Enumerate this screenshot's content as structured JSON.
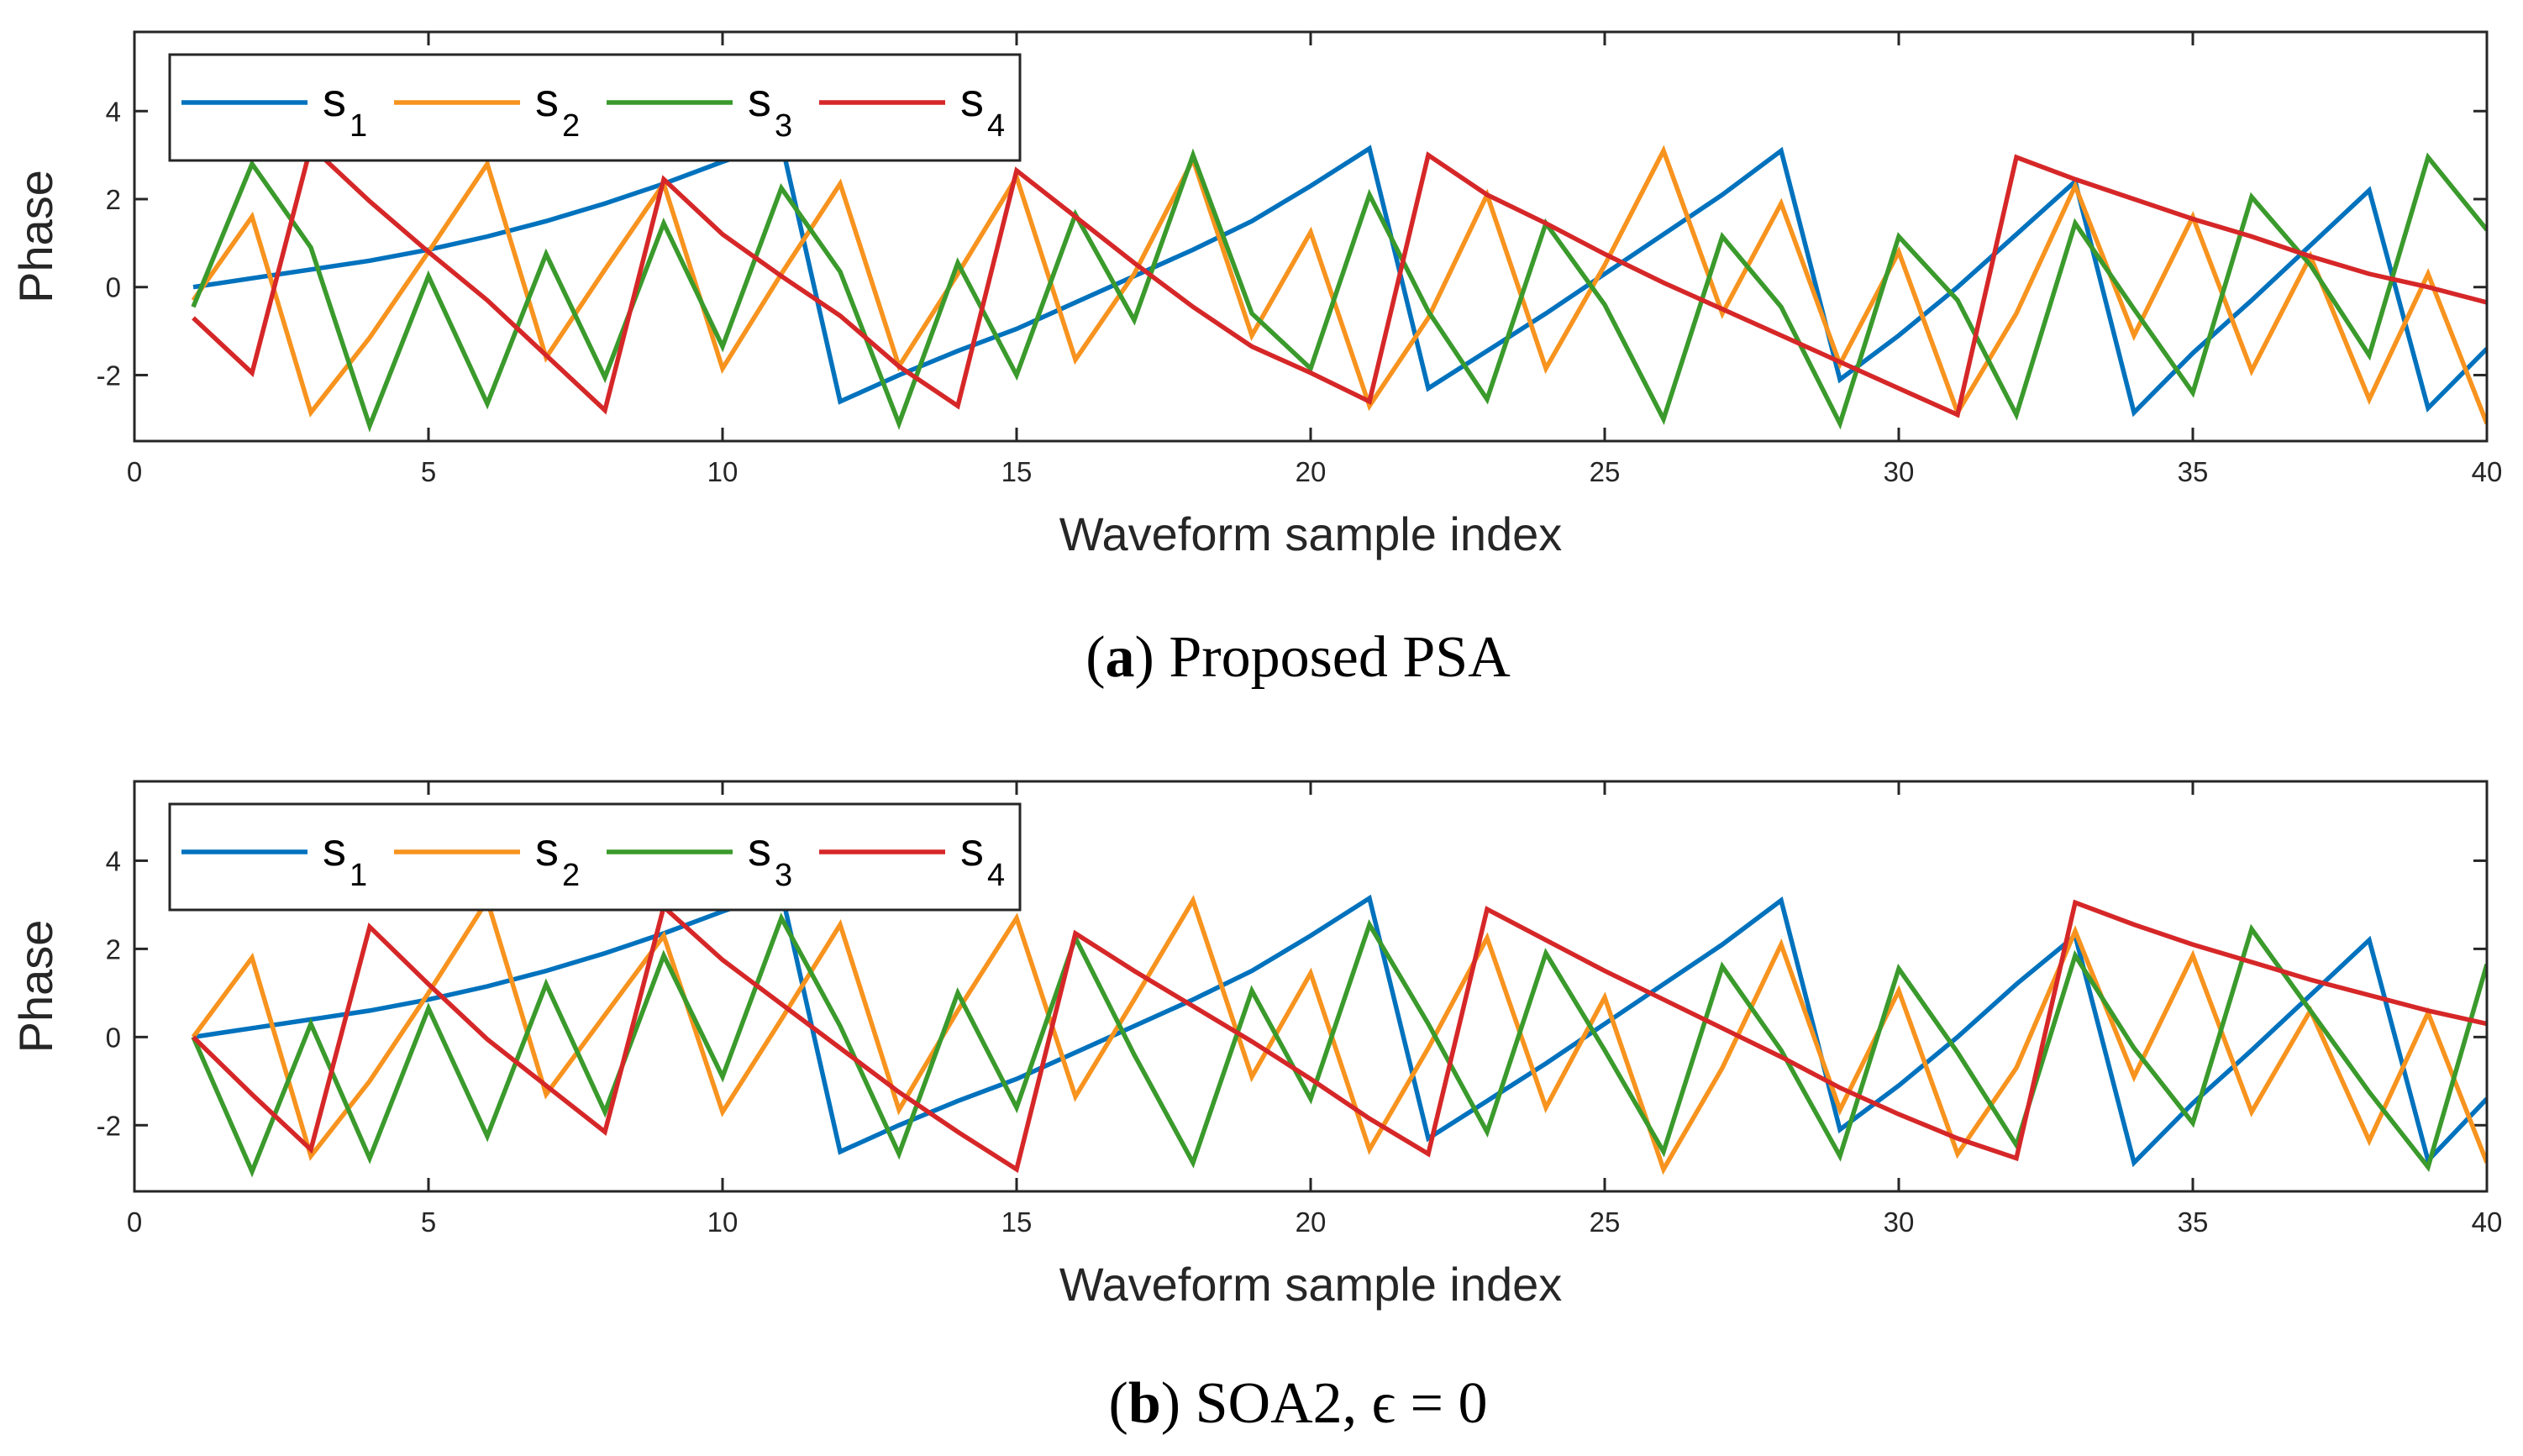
{
  "chart_data": [
    {
      "type": "line",
      "xlabel": "Waveform sample index",
      "ylabel": "Phase",
      "xlim": [
        0,
        40
      ],
      "ylim": [
        -3.5,
        5.8
      ],
      "xticks": [
        0,
        5,
        10,
        15,
        20,
        25,
        30,
        35,
        40
      ],
      "yticks": [
        -2,
        0,
        2,
        4
      ],
      "grid": false,
      "legend": "top-left",
      "caption": {
        "label": "a",
        "text": "Proposed PSA"
      },
      "x": [
        1,
        2,
        3,
        4,
        5,
        6,
        7,
        8,
        9,
        10,
        11,
        12,
        13,
        14,
        15,
        16,
        17,
        18,
        19,
        20,
        21,
        22,
        23,
        24,
        25,
        26,
        27,
        28,
        29,
        30,
        31,
        32,
        33,
        34,
        35,
        36,
        37,
        38,
        39,
        40
      ],
      "series": [
        {
          "name": "s1",
          "sub": "1",
          "color": "#0072BD",
          "values": [
            0.0,
            0.2,
            0.4,
            0.6,
            0.85,
            1.15,
            1.5,
            1.9,
            2.35,
            2.85,
            3.3,
            -2.6,
            -2.0,
            -1.45,
            -0.95,
            -0.35,
            0.25,
            0.85,
            1.5,
            2.3,
            3.15,
            -2.3,
            -1.45,
            -0.6,
            0.3,
            1.2,
            2.1,
            3.1,
            -2.1,
            -1.1,
            0.0,
            1.2,
            2.4,
            -2.85,
            -1.5,
            -0.3,
            0.95,
            2.2,
            -2.75,
            -1.4
          ]
        },
        {
          "name": "s2",
          "sub": "2",
          "color": "#EDB120",
          "values": [
            -0.3,
            1.6,
            -2.85,
            -1.15,
            0.8,
            2.8,
            -1.6,
            0.4,
            2.35,
            -1.85,
            0.3,
            2.35,
            -1.8,
            0.3,
            2.5,
            -1.65,
            0.3,
            2.9,
            -1.1,
            1.25,
            -2.7,
            -0.7,
            2.1,
            -1.85,
            0.5,
            3.1,
            -0.6,
            1.9,
            -1.75,
            0.8,
            -2.85,
            -0.6,
            2.3,
            -1.1,
            1.6,
            -1.9,
            0.7,
            -2.55,
            0.3,
            -3.1
          ]
        },
        {
          "name": "s3",
          "sub": "3",
          "color": "#77AC30",
          "values": [
            -0.45,
            2.8,
            0.9,
            -3.15,
            0.25,
            -2.65,
            0.75,
            -2.05,
            1.45,
            -1.35,
            2.25,
            0.35,
            -3.1,
            0.55,
            -2.0,
            1.65,
            -0.75,
            3.0,
            -0.6,
            -1.85,
            2.1,
            -0.55,
            -2.55,
            1.45,
            -0.4,
            -3.0,
            1.15,
            -0.45,
            -3.1,
            1.15,
            -0.3,
            -2.9,
            1.45,
            -0.5,
            -2.4,
            2.05,
            0.5,
            -1.55,
            2.95,
            1.3
          ]
        },
        {
          "name": "s4",
          "sub": "4",
          "color": "#D95319",
          "values": [
            -0.7,
            -1.95,
            3.2,
            1.95,
            0.8,
            -0.3,
            -1.55,
            -2.8,
            2.45,
            1.2,
            0.25,
            -0.65,
            -1.8,
            -2.7,
            2.65,
            1.6,
            0.55,
            -0.45,
            -1.35,
            -1.95,
            -2.6,
            3.0,
            2.1,
            1.45,
            0.75,
            0.1,
            -0.5,
            -1.1,
            -1.7,
            -2.3,
            -2.9,
            2.95,
            2.45,
            2.0,
            1.55,
            1.15,
            0.7,
            0.3,
            0.0,
            -0.35
          ]
        }
      ]
    },
    {
      "type": "line",
      "xlabel": "Waveform sample index",
      "ylabel": "Phase",
      "xlim": [
        0,
        40
      ],
      "ylim": [
        -3.5,
        5.8
      ],
      "xticks": [
        0,
        5,
        10,
        15,
        20,
        25,
        30,
        35,
        40
      ],
      "yticks": [
        -2,
        0,
        2,
        4
      ],
      "grid": false,
      "legend": "top-left",
      "caption": {
        "label": "b",
        "text": "SOA2, ϵ = 0"
      },
      "x": [
        1,
        2,
        3,
        4,
        5,
        6,
        7,
        8,
        9,
        10,
        11,
        12,
        13,
        14,
        15,
        16,
        17,
        18,
        19,
        20,
        21,
        22,
        23,
        24,
        25,
        26,
        27,
        28,
        29,
        30,
        31,
        32,
        33,
        34,
        35,
        36,
        37,
        38,
        39,
        40
      ],
      "series": [
        {
          "name": "s1",
          "sub": "1",
          "color": "#0072BD",
          "values": [
            0.0,
            0.2,
            0.4,
            0.6,
            0.85,
            1.15,
            1.5,
            1.9,
            2.35,
            2.85,
            3.3,
            -2.6,
            -2.0,
            -1.45,
            -0.95,
            -0.35,
            0.25,
            0.85,
            1.5,
            2.3,
            3.15,
            -2.3,
            -1.45,
            -0.6,
            0.3,
            1.2,
            2.1,
            3.1,
            -2.1,
            -1.1,
            0.0,
            1.2,
            2.3,
            -2.85,
            -1.5,
            -0.3,
            0.95,
            2.2,
            -2.8,
            -1.4
          ]
        },
        {
          "name": "s2",
          "sub": "2",
          "color": "#EDB120",
          "values": [
            0.0,
            1.8,
            -2.7,
            -1.0,
            1.0,
            3.1,
            -1.3,
            0.5,
            2.3,
            -1.7,
            0.4,
            2.55,
            -1.65,
            0.6,
            2.7,
            -1.35,
            0.85,
            3.1,
            -0.9,
            1.45,
            -2.55,
            -0.25,
            2.25,
            -1.6,
            0.9,
            -3.0,
            -0.7,
            2.1,
            -1.65,
            1.05,
            -2.65,
            -0.7,
            2.4,
            -0.9,
            1.85,
            -1.7,
            0.6,
            -2.35,
            0.55,
            -2.85
          ]
        },
        {
          "name": "s3",
          "sub": "3",
          "color": "#77AC30",
          "values": [
            0.0,
            -3.05,
            0.3,
            -2.75,
            0.65,
            -2.25,
            1.2,
            -1.7,
            1.85,
            -0.9,
            2.7,
            0.25,
            -2.65,
            1.0,
            -1.6,
            2.25,
            -0.4,
            -2.85,
            1.05,
            -1.4,
            2.55,
            0.3,
            -2.15,
            1.9,
            -0.3,
            -2.6,
            1.6,
            -0.3,
            -2.7,
            1.55,
            -0.35,
            -2.45,
            1.85,
            -0.25,
            -1.95,
            2.45,
            0.6,
            -1.25,
            -2.95,
            1.65
          ]
        },
        {
          "name": "s4",
          "sub": "4",
          "color": "#D95319",
          "values": [
            0.0,
            -1.3,
            -2.55,
            2.5,
            1.2,
            -0.05,
            -1.1,
            -2.15,
            2.95,
            1.75,
            0.75,
            -0.25,
            -1.25,
            -2.15,
            -3.0,
            2.35,
            1.5,
            0.7,
            -0.1,
            -0.95,
            -1.85,
            -2.65,
            2.9,
            2.2,
            1.5,
            0.85,
            0.2,
            -0.45,
            -1.15,
            -1.75,
            -2.3,
            -2.75,
            3.05,
            2.55,
            2.1,
            1.7,
            1.3,
            0.95,
            0.6,
            0.3
          ]
        }
      ]
    }
  ]
}
